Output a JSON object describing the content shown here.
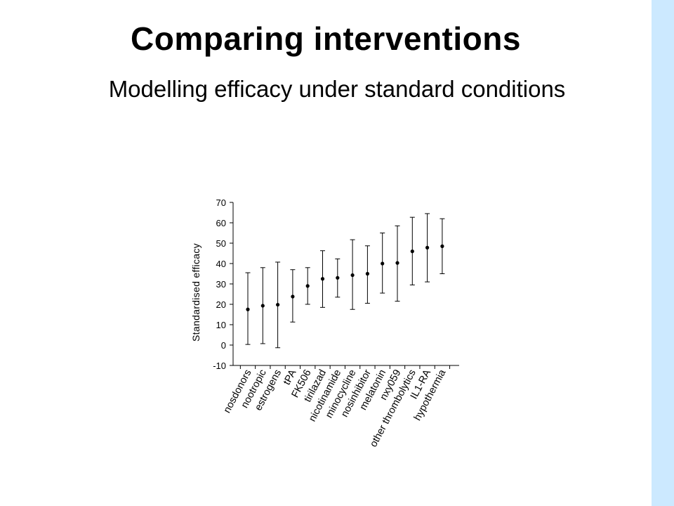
{
  "slide": {
    "title": "Comparing interventions",
    "subtitle": "Modelling efficacy under standard conditions",
    "side_band_color": "#cce9ff"
  },
  "chart_data": {
    "type": "scatter",
    "categories": [
      "nosdonors",
      "nootropic",
      "estrogens",
      "tPA",
      "FK506",
      "tirilazad",
      "nicotinamide",
      "minocycline",
      "nosinhibitor",
      "melatonin",
      "nxy059",
      "other thrombolytics",
      "IL1-RA",
      "hypothermia"
    ],
    "series": [
      {
        "values": [
          17.5,
          19.3,
          19.8,
          23.8,
          29.0,
          32.5,
          33.0,
          34.3,
          35.0,
          40.0,
          40.3,
          46.0,
          47.8,
          48.5
        ],
        "lower": [
          0.3,
          0.7,
          -1.3,
          11.3,
          20.0,
          18.5,
          23.5,
          17.5,
          20.5,
          25.5,
          21.5,
          29.5,
          31.0,
          35.0
        ],
        "upper": [
          35.5,
          38.0,
          40.7,
          37.0,
          38.0,
          46.3,
          42.3,
          51.7,
          48.7,
          55.0,
          58.5,
          62.7,
          64.5,
          62.0
        ]
      }
    ],
    "ylabel": "Standardised efficacy",
    "xlabel": "",
    "ylim": [
      -10,
      70
    ],
    "yticks": [
      -10,
      0,
      10,
      20,
      30,
      40,
      50,
      60,
      70
    ],
    "grid": false,
    "marker_color": "#000000"
  }
}
